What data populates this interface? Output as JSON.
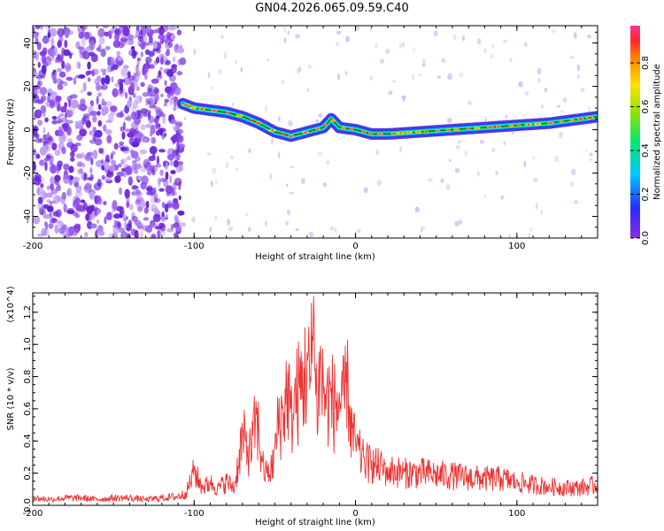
{
  "title": "GN04.2026.065.09.59.C40",
  "colors": {
    "snr_line": "#ee3333",
    "low_amplitude": "#7a2be0",
    "ridge_high": "#ff2222"
  },
  "chart_data": [
    {
      "type": "heatmap",
      "title": "GN04.2026.065.09.59.C40",
      "xlabel": "Height of straight line (km)",
      "ylabel": "Frequency (Hz)",
      "xlim": [
        -200,
        150
      ],
      "ylim": [
        -50,
        48
      ],
      "xticks": [
        -200,
        -100,
        0,
        100
      ],
      "yticks": [
        -40,
        -20,
        0,
        20,
        40
      ],
      "colorbar": {
        "label": "Normalized spectral amplitude",
        "range": [
          0,
          0.97
        ],
        "ticks": [
          0.0,
          0.2,
          0.4,
          0.6,
          0.8
        ],
        "colormap": "rainbow (purple-blue-cyan-green-yellow-orange-red-magenta)"
      },
      "noise_region_x": [
        -200,
        -107
      ],
      "ridge": {
        "x": [
          -107,
          -100,
          -90,
          -80,
          -70,
          -60,
          -50,
          -40,
          -30,
          -20,
          -15,
          -10,
          0,
          10,
          20,
          40,
          60,
          80,
          100,
          120,
          140,
          150
        ],
        "frequency": [
          12,
          10,
          9,
          8,
          6,
          3,
          -1,
          -3,
          -1,
          1,
          5,
          1,
          0,
          -2,
          -2,
          -1,
          0,
          1,
          2,
          3,
          5,
          6
        ]
      }
    },
    {
      "type": "line",
      "xlabel": "Height of straight line (km)",
      "ylabel": "SNR (10 * v/v)",
      "y_multiplier": "(x10^4)",
      "xlim": [
        -200,
        150
      ],
      "ylim": [
        0,
        1.32
      ],
      "xticks": [
        -200,
        -100,
        0,
        100
      ],
      "yticks": [
        0.0,
        0.2,
        0.4,
        0.6,
        0.8,
        1.0,
        1.2
      ],
      "series": [
        {
          "x": [
            -200,
            -190,
            -180,
            -170,
            -160,
            -150,
            -140,
            -130,
            -120,
            -110,
            -105,
            -100,
            -95,
            -90,
            -85,
            -80,
            -75,
            -72,
            -70,
            -68,
            -65,
            -62,
            -60,
            -58,
            -55,
            -52,
            -50,
            -48,
            -45,
            -42,
            -40,
            -38,
            -35,
            -32,
            -30,
            -28,
            -26,
            -25,
            -24,
            -22,
            -20,
            -18,
            -16,
            -14,
            -12,
            -10,
            -8,
            -6,
            -5,
            -4,
            -2,
            0,
            5,
            10,
            20,
            30,
            40,
            50,
            60,
            70,
            80,
            90,
            100,
            110,
            120,
            130,
            140,
            150
          ],
          "y": [
            0.05,
            0.04,
            0.05,
            0.05,
            0.04,
            0.05,
            0.05,
            0.04,
            0.05,
            0.06,
            0.08,
            0.23,
            0.12,
            0.15,
            0.12,
            0.16,
            0.12,
            0.35,
            0.47,
            0.4,
            0.36,
            0.55,
            0.5,
            0.28,
            0.2,
            0.25,
            0.35,
            0.55,
            0.62,
            0.83,
            0.6,
            0.7,
            0.78,
            0.85,
            0.95,
            0.8,
            1.3,
            0.85,
            0.7,
            0.9,
            0.8,
            0.72,
            0.75,
            0.7,
            0.65,
            0.7,
            0.68,
            0.76,
            1.03,
            0.62,
            0.48,
            0.4,
            0.3,
            0.28,
            0.24,
            0.22,
            0.22,
            0.21,
            0.2,
            0.19,
            0.18,
            0.18,
            0.16,
            0.14,
            0.13,
            0.12,
            0.12,
            0.14
          ]
        }
      ]
    }
  ]
}
